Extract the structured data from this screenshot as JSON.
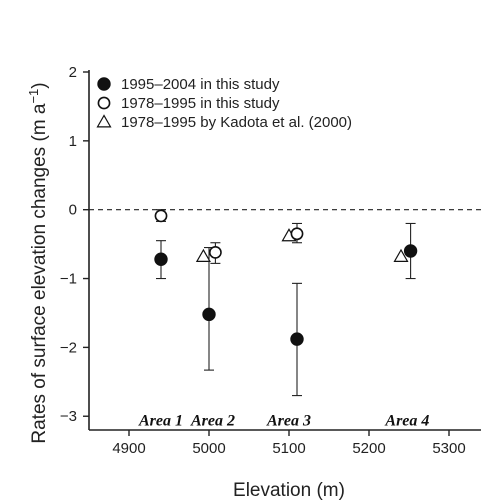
{
  "chart_data": {
    "type": "scatter",
    "title": "",
    "xlabel": "Elevation (m)",
    "ylabel": "Rates of surface elevation changes (m a",
    "ylabel_sup": "−1",
    "ylabel_close": ")",
    "xlim": [
      4850,
      5340
    ],
    "ylim": [
      -3.2,
      2.0
    ],
    "xticks": [
      4900,
      5000,
      5100,
      5200,
      5300
    ],
    "yticks": [
      -3,
      -2,
      -1,
      0,
      1,
      2
    ],
    "ytick_labels": [
      "−3",
      "−2",
      "−1",
      "0",
      "1",
      "2"
    ],
    "reference_line": {
      "y": 0,
      "style": "dashed"
    },
    "legend_position": "top-left",
    "series": [
      {
        "name": "1995–2004 in this study",
        "marker": "filled-circle",
        "points": [
          {
            "x": 4940,
            "y": -0.72,
            "err_low": -1.0,
            "err_high": -0.45
          },
          {
            "x": 5000,
            "y": -1.52,
            "err_low": -2.33,
            "err_high": -0.55
          },
          {
            "x": 5110,
            "y": -1.88,
            "err_low": -2.7,
            "err_high": -1.07
          },
          {
            "x": 5252,
            "y": -0.6,
            "err_low": -1.0,
            "err_high": -0.2
          }
        ]
      },
      {
        "name": "1978–1995 in this study",
        "marker": "open-circle",
        "points": [
          {
            "x": 4940,
            "y": -0.09,
            "err_low": -0.17,
            "err_high": 0.0
          },
          {
            "x": 5008,
            "y": -0.62,
            "err_low": -0.78,
            "err_high": -0.48
          },
          {
            "x": 5110,
            "y": -0.35,
            "err_low": -0.48,
            "err_high": -0.2
          }
        ]
      },
      {
        "name": "1978–1995 by Kadota et al. (2000)",
        "marker": "open-triangle",
        "points": [
          {
            "x": 4993,
            "y": -0.68
          },
          {
            "x": 5100,
            "y": -0.38
          },
          {
            "x": 5240,
            "y": -0.68
          }
        ]
      }
    ],
    "annotations": [
      {
        "text": "Area 1",
        "x": 4940,
        "y": -3.05
      },
      {
        "text": "Area 2",
        "x": 5005,
        "y": -3.05
      },
      {
        "text": "Area 3",
        "x": 5100,
        "y": -3.05
      },
      {
        "text": "Area 4",
        "x": 5248,
        "y": -3.05
      }
    ]
  }
}
